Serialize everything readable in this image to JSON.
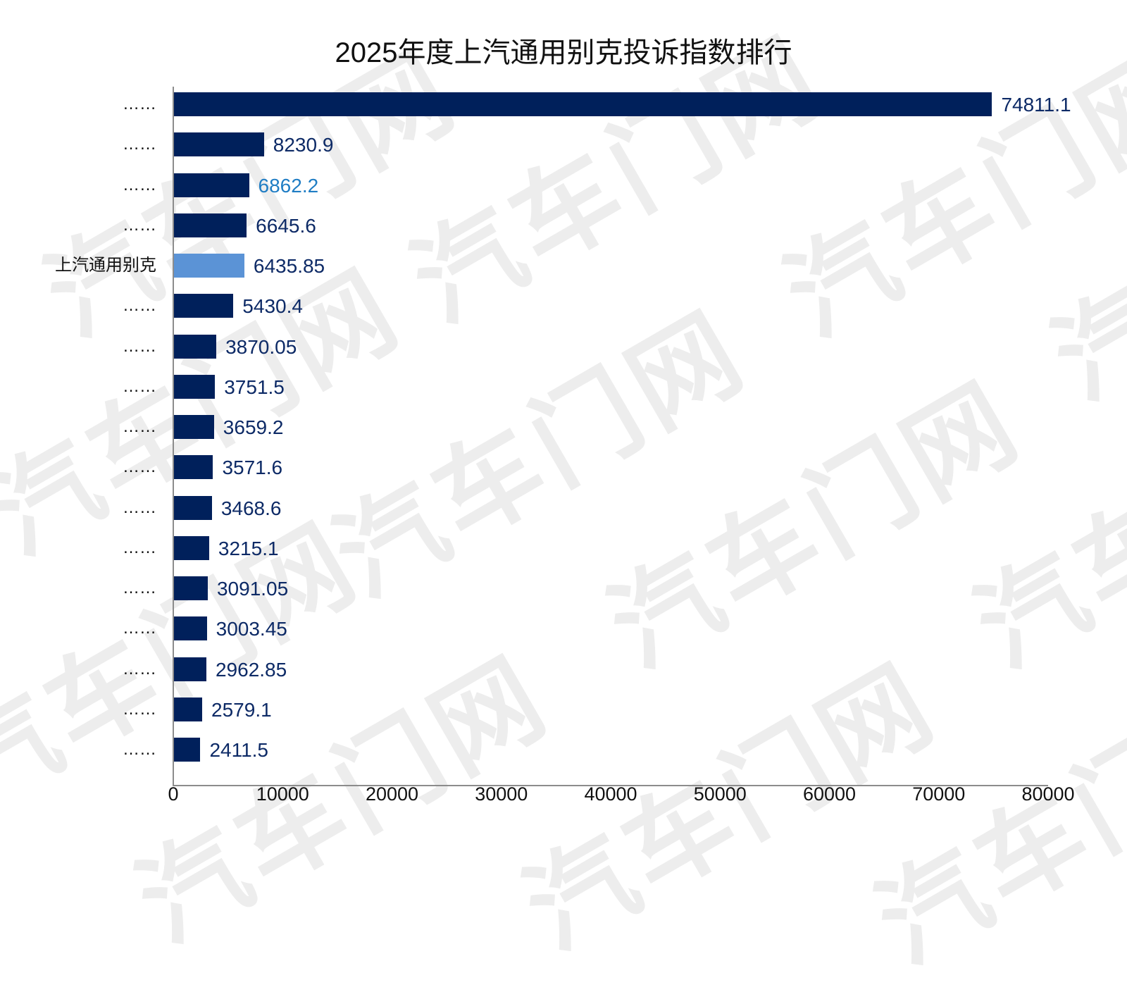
{
  "title": "2025年度上汽通用别克投诉指数排行",
  "colors": {
    "bar": "#00205b",
    "highlight_bar": "#5b93d6",
    "value_label": "#0d2a66",
    "value_label_alt": "#1f7dc4",
    "watermark": "#ededed"
  },
  "watermark_text": "汽车门网",
  "axis": {
    "ticks": [
      "0",
      "10000",
      "20000",
      "30000",
      "40000",
      "50000",
      "60000",
      "70000",
      "80000"
    ]
  },
  "chart_data": {
    "type": "bar",
    "orientation": "horizontal",
    "title": "2025年度上汽通用别克投诉指数排行",
    "xlabel": "",
    "ylabel": "",
    "xlim": [
      0,
      80000
    ],
    "x_ticks": [
      0,
      10000,
      20000,
      30000,
      40000,
      50000,
      60000,
      70000,
      80000
    ],
    "grid": false,
    "legend": null,
    "categories": [
      "……",
      "……",
      "……",
      "……",
      "上汽通用别克",
      "……",
      "……",
      "……",
      "……",
      "……",
      "……",
      "……",
      "……",
      "……",
      "……",
      "……",
      "……"
    ],
    "values": [
      74811.1,
      8230.9,
      6862.2,
      6645.6,
      6435.85,
      5430.4,
      3870.05,
      3751.5,
      3659.2,
      3571.6,
      3468.6,
      3215.1,
      3091.05,
      3003.45,
      2962.85,
      2579.1,
      2411.5
    ],
    "value_labels": [
      "74811.1",
      "8230.9",
      "6862.2",
      "6645.6",
      "6435.85",
      "5430.4",
      "3870.05",
      "3751.5",
      "3659.2",
      "3571.6",
      "3468.6",
      "3215.1",
      "3091.05",
      "3003.45",
      "2962.85",
      "2579.1",
      "2411.5"
    ],
    "highlight_index": 4,
    "annotations": [
      "上汽通用别克 highlighted in light blue"
    ]
  }
}
